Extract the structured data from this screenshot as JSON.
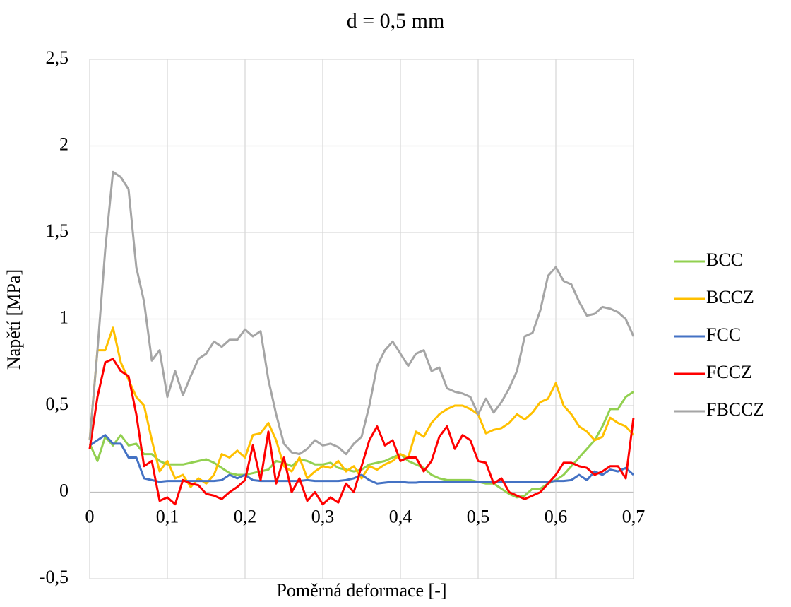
{
  "chart_data": {
    "type": "line",
    "title": "d = 0,5 mm",
    "x_label": "Poměrná deformace [-]",
    "y_label": "Napětí [MPa]",
    "x": [
      0,
      0.01,
      0.02,
      0.03,
      0.04,
      0.05,
      0.06,
      0.07,
      0.08,
      0.09,
      0.1,
      0.11,
      0.12,
      0.13,
      0.14,
      0.15,
      0.16,
      0.17,
      0.18,
      0.19,
      0.2,
      0.21,
      0.22,
      0.23,
      0.24,
      0.25,
      0.26,
      0.27,
      0.28,
      0.29,
      0.3,
      0.31,
      0.32,
      0.33,
      0.34,
      0.35,
      0.36,
      0.37,
      0.38,
      0.39,
      0.4,
      0.41,
      0.42,
      0.43,
      0.44,
      0.45,
      0.46,
      0.47,
      0.48,
      0.49,
      0.5,
      0.51,
      0.52,
      0.53,
      0.54,
      0.55,
      0.56,
      0.57,
      0.58,
      0.59,
      0.6,
      0.61,
      0.62,
      0.63,
      0.64,
      0.65,
      0.66,
      0.67,
      0.68,
      0.69,
      0.7
    ],
    "series": [
      {
        "name": "BCC",
        "color": "#92d050",
        "values": [
          0.28,
          0.18,
          0.32,
          0.27,
          0.33,
          0.27,
          0.28,
          0.22,
          0.22,
          0.18,
          0.16,
          0.16,
          0.16,
          0.17,
          0.18,
          0.19,
          0.17,
          0.14,
          0.11,
          0.1,
          0.1,
          0.11,
          0.12,
          0.13,
          0.18,
          0.17,
          0.15,
          0.19,
          0.18,
          0.16,
          0.16,
          0.17,
          0.14,
          0.13,
          0.12,
          0.13,
          0.16,
          0.17,
          0.18,
          0.2,
          0.22,
          0.18,
          0.16,
          0.14,
          0.1,
          0.08,
          0.07,
          0.07,
          0.07,
          0.07,
          0.06,
          0.05,
          0.05,
          0.02,
          -0.01,
          -0.03,
          -0.02,
          0.02,
          0.02,
          0.05,
          0.07,
          0.1,
          0.15,
          0.2,
          0.25,
          0.3,
          0.38,
          0.48,
          0.48,
          0.55,
          0.58
        ]
      },
      {
        "name": "BCCZ",
        "color": "#ffc000",
        "values": [
          0.3,
          0.82,
          0.82,
          0.95,
          0.75,
          0.65,
          0.55,
          0.5,
          0.3,
          0.12,
          0.18,
          0.08,
          0.1,
          0.03,
          0.08,
          0.05,
          0.1,
          0.22,
          0.2,
          0.24,
          0.2,
          0.33,
          0.34,
          0.4,
          0.3,
          0.15,
          0.12,
          0.2,
          0.08,
          0.12,
          0.15,
          0.14,
          0.18,
          0.12,
          0.15,
          0.08,
          0.15,
          0.13,
          0.16,
          0.18,
          0.22,
          0.2,
          0.35,
          0.32,
          0.4,
          0.45,
          0.48,
          0.5,
          0.5,
          0.48,
          0.45,
          0.34,
          0.36,
          0.37,
          0.4,
          0.45,
          0.42,
          0.46,
          0.52,
          0.54,
          0.63,
          0.5,
          0.45,
          0.38,
          0.35,
          0.3,
          0.32,
          0.43,
          0.4,
          0.38,
          0.33
        ]
      },
      {
        "name": "FCC",
        "color": "#4472c4",
        "values": [
          0.27,
          0.3,
          0.33,
          0.28,
          0.28,
          0.2,
          0.2,
          0.08,
          0.07,
          0.06,
          0.065,
          0.065,
          0.065,
          0.065,
          0.065,
          0.065,
          0.065,
          0.07,
          0.1,
          0.08,
          0.1,
          0.07,
          0.065,
          0.065,
          0.065,
          0.065,
          0.065,
          0.065,
          0.07,
          0.065,
          0.065,
          0.065,
          0.065,
          0.07,
          0.08,
          0.1,
          0.07,
          0.05,
          0.055,
          0.06,
          0.06,
          0.055,
          0.055,
          0.06,
          0.06,
          0.06,
          0.06,
          0.06,
          0.06,
          0.06,
          0.06,
          0.06,
          0.06,
          0.06,
          0.06,
          0.06,
          0.06,
          0.06,
          0.06,
          0.06,
          0.065,
          0.065,
          0.07,
          0.1,
          0.07,
          0.12,
          0.1,
          0.13,
          0.12,
          0.14,
          0.1
        ]
      },
      {
        "name": "FCCZ",
        "color": "#ff0000",
        "values": [
          0.25,
          0.55,
          0.75,
          0.77,
          0.7,
          0.67,
          0.45,
          0.15,
          0.18,
          -0.05,
          -0.03,
          -0.07,
          0.07,
          0.05,
          0.04,
          -0.01,
          -0.02,
          -0.04,
          0.0,
          0.03,
          0.07,
          0.27,
          0.07,
          0.35,
          0.05,
          0.2,
          0.0,
          0.08,
          -0.05,
          0.0,
          -0.07,
          -0.03,
          -0.06,
          0.05,
          0.0,
          0.15,
          0.3,
          0.38,
          0.27,
          0.3,
          0.18,
          0.2,
          0.2,
          0.12,
          0.18,
          0.32,
          0.38,
          0.25,
          0.33,
          0.3,
          0.18,
          0.17,
          0.05,
          0.08,
          0.0,
          -0.02,
          -0.04,
          -0.02,
          0.0,
          0.05,
          0.1,
          0.17,
          0.17,
          0.15,
          0.14,
          0.1,
          0.12,
          0.15,
          0.15,
          0.08,
          0.43
        ]
      },
      {
        "name": "FBCCZ",
        "color": "#a5a5a5",
        "values": [
          0.3,
          0.82,
          1.4,
          1.85,
          1.82,
          1.75,
          1.3,
          1.1,
          0.76,
          0.82,
          0.55,
          0.7,
          0.56,
          0.67,
          0.77,
          0.8,
          0.87,
          0.84,
          0.88,
          0.88,
          0.94,
          0.9,
          0.93,
          0.65,
          0.45,
          0.28,
          0.23,
          0.22,
          0.25,
          0.3,
          0.27,
          0.28,
          0.26,
          0.22,
          0.28,
          0.32,
          0.5,
          0.73,
          0.82,
          0.87,
          0.8,
          0.73,
          0.8,
          0.82,
          0.7,
          0.72,
          0.6,
          0.58,
          0.57,
          0.55,
          0.45,
          0.54,
          0.46,
          0.52,
          0.6,
          0.7,
          0.9,
          0.92,
          1.05,
          1.25,
          1.3,
          1.22,
          1.2,
          1.1,
          1.02,
          1.03,
          1.07,
          1.06,
          1.04,
          1.0,
          0.9
        ]
      }
    ],
    "xlim": [
      0,
      0.7
    ],
    "xticks": [
      0,
      {
        "value": 0.1,
        "label": "0,1"
      },
      {
        "value": 0.2,
        "label": "0,2"
      },
      {
        "value": 0.3,
        "label": "0,3"
      },
      {
        "value": 0.4,
        "label": "0,4"
      },
      {
        "value": 0.5,
        "label": "0,5"
      },
      {
        "value": 0.6,
        "label": "0,6"
      },
      {
        "value": 0.7,
        "label": "0,7"
      }
    ],
    "ylim": [
      -0.5,
      2.5
    ],
    "yticks": [
      {
        "value": -0.5,
        "label": "-0,5"
      },
      0,
      {
        "value": 0.5,
        "label": "0,5"
      },
      1,
      {
        "value": 1.5,
        "label": "1,5"
      },
      2,
      {
        "value": 2.5,
        "label": "2,5"
      }
    ],
    "grid": true,
    "legend": "right"
  }
}
